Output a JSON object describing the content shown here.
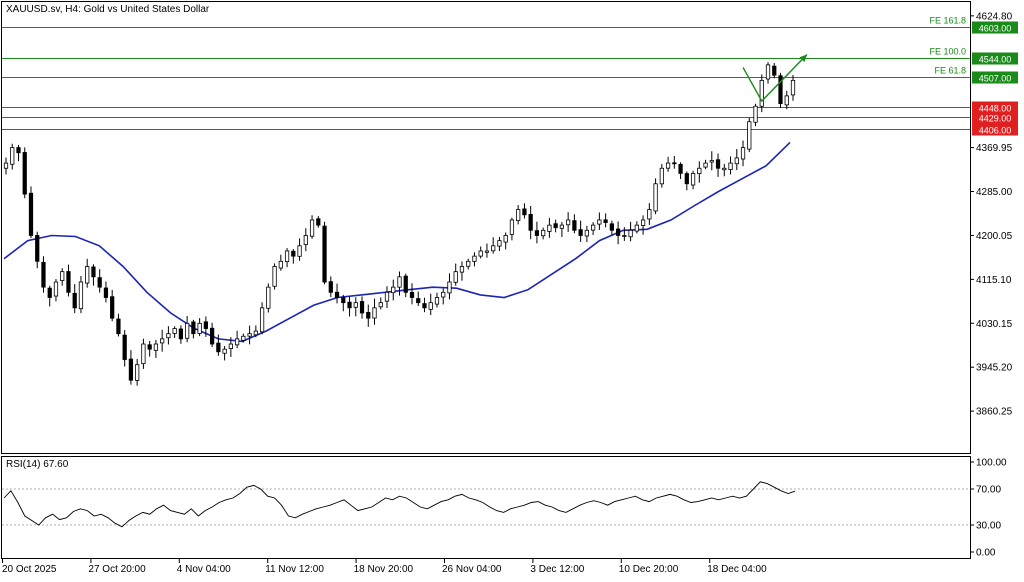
{
  "header": {
    "title": "XAUUSD.sv, H4:  Gold vs United States Dollar"
  },
  "rsi_panel": {
    "label": "RSI(14) 67.60"
  },
  "colors": {
    "bullish_candle": "#000000",
    "bearish_candle": "#000000",
    "moving_average": "#1c24b5",
    "fibo_line": "#1a8a1a",
    "fibo_label_bg": "#1a8a1a",
    "support_line": "#e02020",
    "support_label_bg": "#e02020",
    "projection_arrow": "#1a8a1a",
    "rsi_line": "#000000",
    "axis_text": "#000000",
    "frame": "#000000",
    "level_dots": "#b0b0b0"
  },
  "chart_data": [
    {
      "type": "candlestick",
      "title": "XAUUSD.sv, H4:  Gold vs United States Dollar",
      "x_tick_labels": [
        "20 Oct 2025",
        "27 Oct 20:00",
        "4 Nov 04:00",
        "11 Nov 12:00",
        "18 Nov 20:00",
        "26 Nov 04:00",
        "3 Dec 12:00",
        "10 Dec 20:00",
        "18 Dec 04:00"
      ],
      "y_tick_labels": [
        "4624.80",
        "4369.95",
        "4285.00",
        "4200.05",
        "4115.10",
        "4030.15",
        "3945.20",
        "3860.25"
      ],
      "ylim": [
        3785,
        4640
      ],
      "grid": false,
      "series": [
        {
          "name": "",
          "kind": "close_path_approx",
          "values": [
            4340,
            4370,
            4360,
            4280,
            4200,
            4150,
            4100,
            4080,
            4110,
            4130,
            4090,
            4060,
            4110,
            4140,
            4120,
            4100,
            4080,
            4040,
            4010,
            3960,
            3920,
            3950,
            3990,
            3980,
            3990,
            4000,
            4010,
            4020,
            4000,
            4030,
            4010,
            4030,
            4020,
            3990,
            3975,
            3980,
            3990,
            4000,
            4005,
            4010,
            4015,
            4060,
            4100,
            4140,
            4150,
            4170,
            4160,
            4180,
            4200,
            4230,
            4220,
            4110,
            4090,
            4080,
            4070,
            4060,
            4070,
            4050,
            4040,
            4060,
            4070,
            4090,
            4100,
            4120,
            4090,
            4080,
            4070,
            4060,
            4070,
            4080,
            4090,
            4110,
            4130,
            4140,
            4150,
            4160,
            4170,
            4170,
            4180,
            4190,
            4200,
            4230,
            4250,
            4240,
            4210,
            4200,
            4210,
            4220,
            4215,
            4220,
            4230,
            4210,
            4200,
            4210,
            4220,
            4230,
            4225,
            4210,
            4200,
            4200,
            4210,
            4220,
            4230,
            4250,
            4300,
            4330,
            4340,
            4340,
            4320,
            4300,
            4320,
            4330,
            4340,
            4345,
            4330,
            4330,
            4340,
            4350,
            4370,
            4420,
            4450,
            4500,
            4530,
            4510,
            4455,
            4470,
            4500
          ]
        },
        {
          "name": "",
          "kind": "moving_average_approx",
          "values": [
            4155,
            4190,
            4200,
            4198,
            4180,
            4140,
            4090,
            4050,
            4020,
            4000,
            3995,
            4015,
            4040,
            4065,
            4080,
            4085,
            4090,
            4095,
            4100,
            4098,
            4085,
            4080,
            4095,
            4125,
            4155,
            4190,
            4210,
            4212,
            4230,
            4258,
            4285,
            4310,
            4335,
            4380
          ]
        }
      ],
      "horizontal_levels": [
        {
          "value": 4603.0,
          "label": "4603.00",
          "tag": "FE 161.8",
          "role": "fibonacci"
        },
        {
          "value": 4544.0,
          "label": "4544.00",
          "tag": "FE 100.0",
          "role": "fibonacci"
        },
        {
          "value": 4507.0,
          "label": "4507.00",
          "tag": "FE 61.8",
          "role": "fibonacci"
        },
        {
          "value": 4448.0,
          "label": "4448.00",
          "tag": "",
          "role": "support"
        },
        {
          "value": 4429.0,
          "label": "4429.00",
          "tag": "",
          "role": "support"
        },
        {
          "value": 4406.0,
          "label": "4406.00",
          "tag": "",
          "role": "support"
        }
      ],
      "projection_arrow": {
        "from": 4460,
        "to": 4550,
        "direction": "up"
      }
    },
    {
      "type": "line",
      "title": "RSI(14) 67.60",
      "y_tick_labels": [
        "100.00",
        "70.00",
        "30.00",
        "0.00"
      ],
      "ylim": [
        0,
        100
      ],
      "levels": [
        70,
        30
      ],
      "grid": false,
      "series": [
        {
          "name": "",
          "values": [
            60,
            68,
            55,
            40,
            35,
            30,
            38,
            42,
            36,
            38,
            45,
            48,
            46,
            40,
            42,
            38,
            32,
            28,
            35,
            40,
            44,
            42,
            48,
            52,
            46,
            44,
            42,
            48,
            40,
            46,
            50,
            55,
            58,
            60,
            65,
            72,
            74,
            70,
            62,
            60,
            52,
            40,
            38,
            42,
            45,
            48,
            50,
            52,
            55,
            58,
            52,
            46,
            48,
            50,
            55,
            60,
            58,
            62,
            60,
            55,
            50,
            48,
            52,
            56,
            58,
            62,
            64,
            60,
            58,
            55,
            50,
            46,
            44,
            48,
            50,
            52,
            55,
            56,
            52,
            50,
            46,
            44,
            48,
            52,
            55,
            57,
            55,
            52,
            56,
            58,
            60,
            62,
            58,
            56,
            60,
            62,
            64,
            62,
            58,
            55,
            56,
            58,
            60,
            58,
            60,
            62,
            60,
            62,
            70,
            78,
            76,
            72,
            68,
            65,
            67.6
          ]
        }
      ]
    }
  ]
}
